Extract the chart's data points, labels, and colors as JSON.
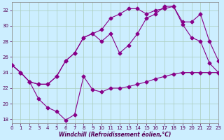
{
  "xlabel": "Windchill (Refroidissement éolien,°C)",
  "background_color": "#cceeff",
  "grid_color": "#aaccbb",
  "line_color": "#880088",
  "xlim": [
    0,
    23
  ],
  "ylim": [
    17.5,
    33.0
  ],
  "xticks": [
    0,
    1,
    2,
    3,
    4,
    5,
    6,
    7,
    8,
    9,
    10,
    11,
    12,
    13,
    14,
    15,
    16,
    17,
    18,
    19,
    20,
    21,
    22,
    23
  ],
  "yticks": [
    18,
    20,
    22,
    24,
    26,
    28,
    30,
    32
  ],
  "series1_x": [
    0,
    1,
    2,
    3,
    4,
    5,
    6,
    7,
    8,
    9,
    10,
    11,
    12,
    13,
    14,
    15,
    16,
    17,
    18,
    19,
    20,
    21,
    22,
    23
  ],
  "series1_y": [
    25.0,
    24.0,
    22.8,
    20.6,
    19.5,
    19.0,
    17.9,
    18.6,
    23.5,
    21.8,
    21.5,
    22.0,
    22.0,
    22.2,
    22.5,
    22.8,
    23.2,
    23.5,
    23.8,
    24.0,
    24.0,
    24.0,
    24.0,
    24.0
  ],
  "series2_x": [
    0,
    1,
    2,
    3,
    4,
    5,
    6,
    7,
    8,
    9,
    10,
    11,
    12,
    13,
    14,
    15,
    16,
    17,
    18,
    19,
    20,
    21,
    22,
    23
  ],
  "series2_y": [
    25.0,
    24.0,
    22.8,
    22.5,
    22.5,
    23.5,
    25.5,
    26.5,
    28.5,
    29.0,
    28.0,
    29.0,
    26.5,
    27.5,
    29.0,
    31.0,
    31.5,
    32.5,
    32.5,
    30.5,
    30.5,
    31.5,
    28.0,
    25.5
  ],
  "series3_x": [
    0,
    1,
    2,
    3,
    4,
    5,
    6,
    7,
    8,
    9,
    10,
    11,
    12,
    13,
    14,
    15,
    16,
    17,
    18,
    19,
    20,
    21,
    22,
    23
  ],
  "series3_y": [
    25.0,
    24.0,
    22.8,
    22.5,
    22.5,
    23.5,
    25.5,
    26.5,
    28.5,
    29.0,
    29.5,
    31.0,
    31.5,
    32.2,
    32.2,
    31.5,
    32.0,
    32.2,
    32.5,
    30.2,
    28.5,
    28.0,
    25.2,
    24.0
  ]
}
